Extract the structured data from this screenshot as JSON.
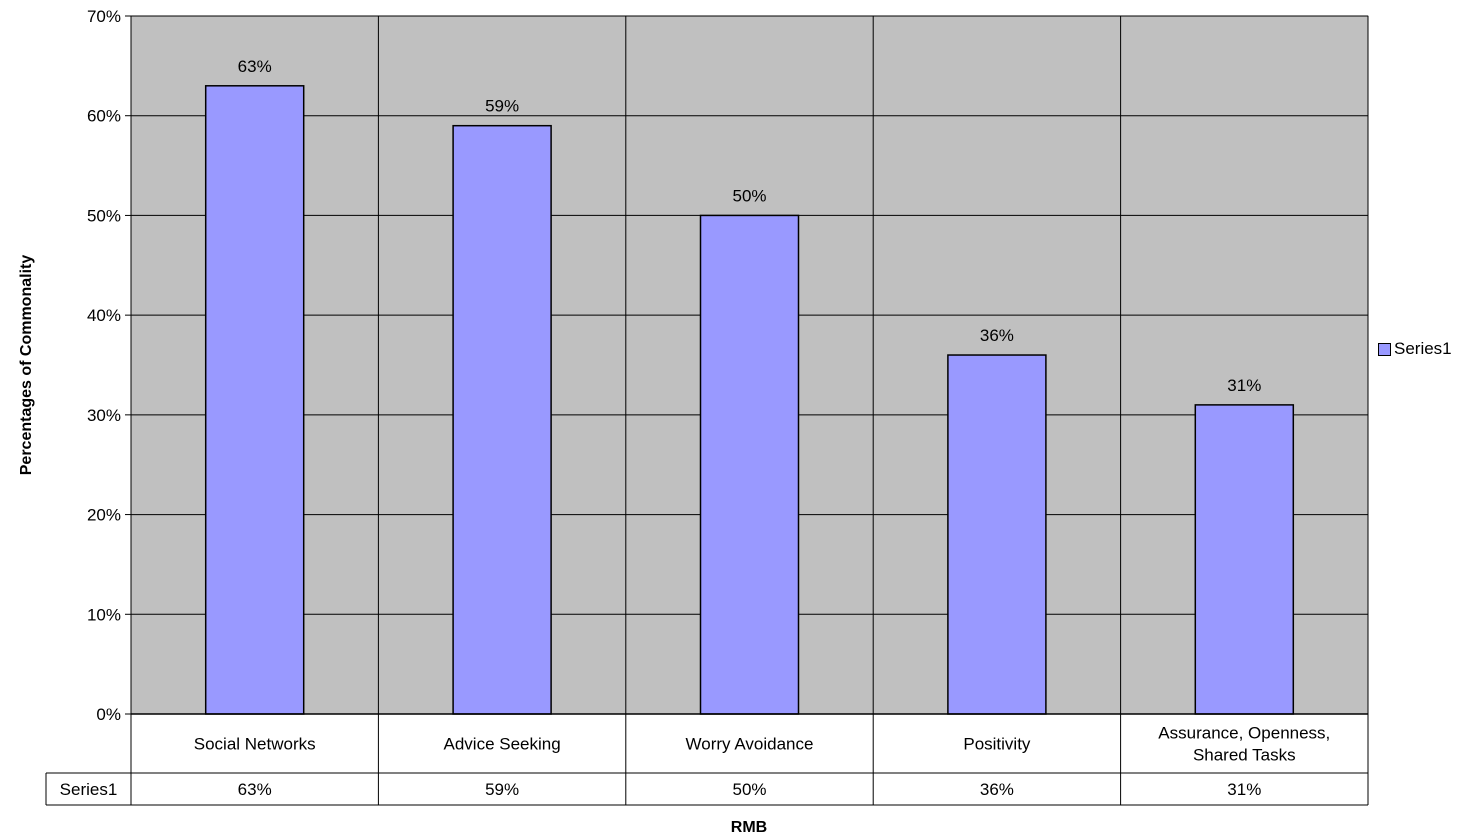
{
  "chart_data": {
    "type": "bar",
    "categories": [
      "Social Networks",
      "Advice Seeking",
      "Worry Avoidance",
      "Positivity",
      "Assurance, Openness, Shared Tasks"
    ],
    "category_label_lines": [
      [
        "Social Networks"
      ],
      [
        "Advice Seeking"
      ],
      [
        "Worry Avoidance"
      ],
      [
        "Positivity"
      ],
      [
        "Assurance, Openness,",
        "Shared Tasks"
      ]
    ],
    "series": [
      {
        "name": "Series1",
        "values": [
          63,
          59,
          50,
          36,
          31
        ],
        "value_labels": [
          "63%",
          "59%",
          "50%",
          "36%",
          "31%"
        ]
      }
    ],
    "data_table": {
      "row_label": "Series1",
      "values": [
        "63%",
        "59%",
        "50%",
        "36%",
        "31%"
      ]
    },
    "xlabel": "RMB",
    "ylabel": "Percentages of Commonality",
    "ylim": [
      0,
      70
    ],
    "yticks": [
      0,
      10,
      20,
      30,
      40,
      50,
      60,
      70
    ],
    "ytick_labels": [
      "0%",
      "10%",
      "20%",
      "30%",
      "40%",
      "50%",
      "60%",
      "70%"
    ],
    "grid": true,
    "legend_position": "right",
    "colors": {
      "bar": "#9999ff",
      "plot_background": "#c0c0c0",
      "gridline": "#000000"
    }
  }
}
